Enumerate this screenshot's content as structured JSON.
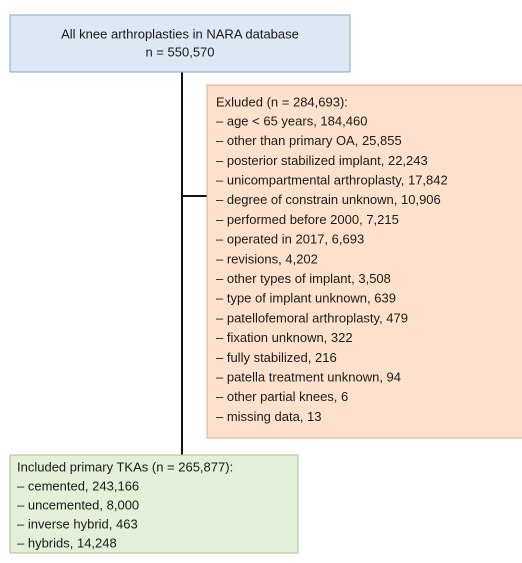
{
  "top": {
    "line1": "All knee arthroplasties in NARA database",
    "line2": "n = 550,570"
  },
  "excluded": {
    "title": "Exluded (n = 284,693):",
    "items": [
      "– age < 65 years, 184,460",
      "– other than primary OA, 25,855",
      "– posterior stabilized implant, 22,243",
      "– unicompartmental arthroplasty, 17,842",
      "– degree of constrain unknown, 10,906",
      "– performed before 2000, 7,215",
      "– operated in 2017, 6,693",
      "– revisions, 4,202",
      "– other types of implant, 3,508",
      "– type of implant unknown, 639",
      "– patellofemoral arthroplasty, 479",
      "– fixation unknown, 322",
      "– fully stabilized, 216",
      "– patella treatment unknown, 94",
      "– other partial knees, 6",
      "– missing data, 13"
    ]
  },
  "included": {
    "title": "Included primary TKAs (n = 265,877):",
    "items": [
      "– cemented, 243,166",
      "– uncemented, 8,000",
      "– inverse hybrid, 463",
      "– hybrids, 14,248"
    ]
  }
}
